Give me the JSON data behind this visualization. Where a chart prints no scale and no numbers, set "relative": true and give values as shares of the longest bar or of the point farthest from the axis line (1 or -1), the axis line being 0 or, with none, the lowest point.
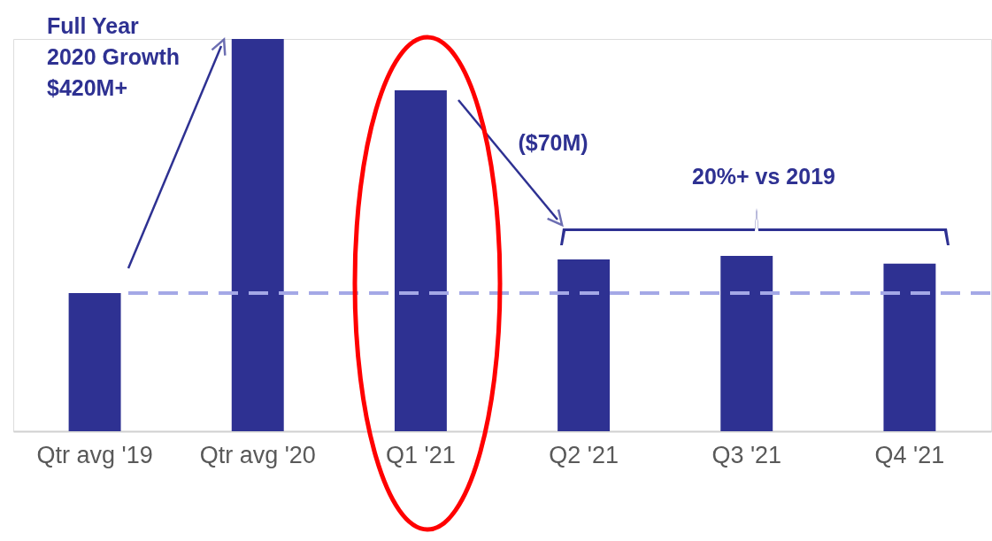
{
  "chart_data": {
    "type": "bar",
    "relative": true,
    "categories": [
      "Qtr avg '19",
      "Qtr avg '20",
      "Q1 '21",
      "Q2 '21",
      "Q3 '21",
      "Q4 '21"
    ],
    "values": [
      0.352,
      1,
      0.869,
      0.438,
      0.447,
      0.427
    ],
    "color": "#2e3192",
    "grid": false,
    "ref_lines": [
      {
        "axis": "y",
        "value": 0.352,
        "color": "#a4a8e6",
        "line_style": "dashed"
      }
    ],
    "annotations": [
      "Full Year\n2020 Growth\n$420M+",
      "($70M)",
      "20%+ vs 2019"
    ]
  }
}
